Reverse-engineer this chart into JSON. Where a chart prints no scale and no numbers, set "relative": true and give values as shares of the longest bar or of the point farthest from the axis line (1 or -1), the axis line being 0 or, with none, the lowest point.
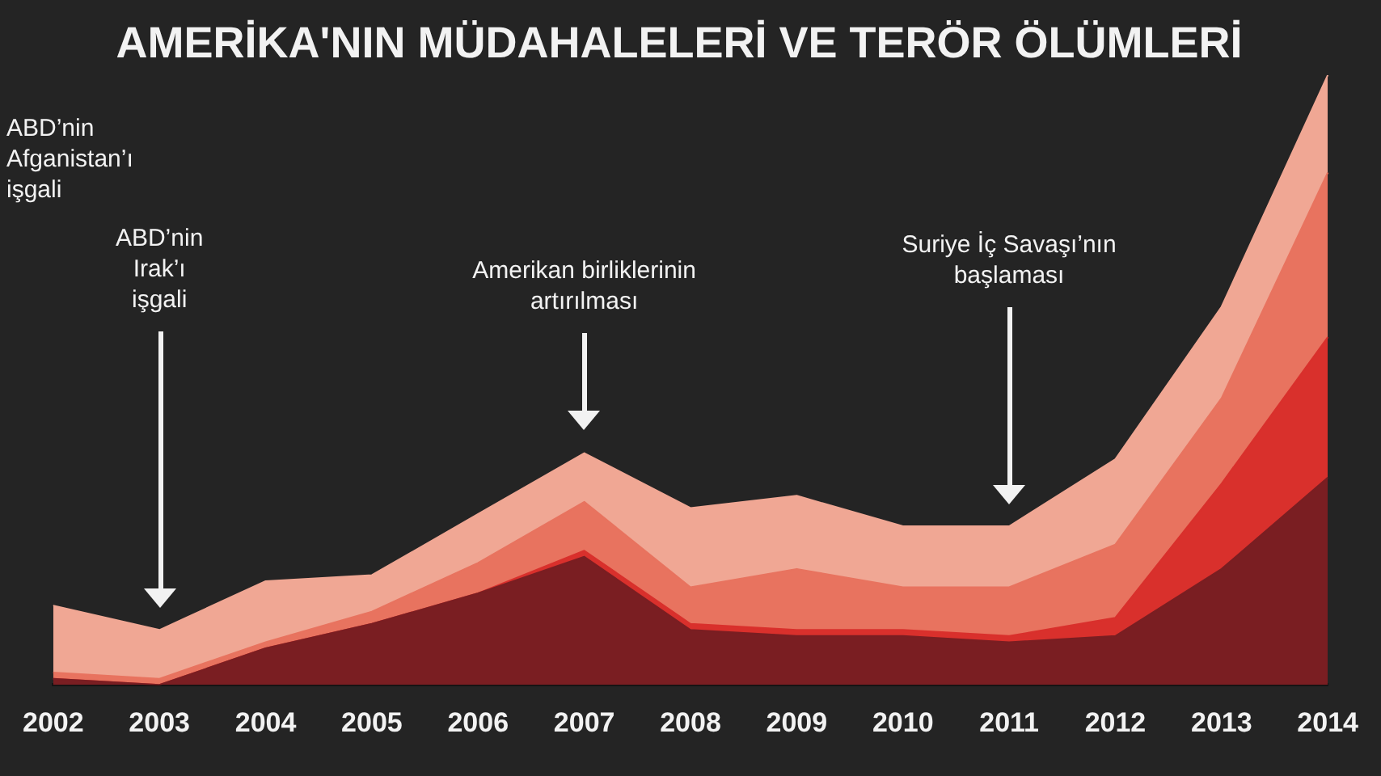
{
  "chart_data": {
    "type": "area",
    "stacked": true,
    "relative": true,
    "title": "AMERİKA'NIN MÜDAHALELERİ VE TERÖR ÖLÜMLERİ",
    "categories": [
      "2002",
      "2003",
      "2004",
      "2005",
      "2006",
      "2007",
      "2008",
      "2009",
      "2010",
      "2011",
      "2012",
      "2013",
      "2014"
    ],
    "series": [
      {
        "color": "#7a1e22",
        "values": [
          0.01,
          0,
          0.06,
          0.1,
          0.15,
          0.21,
          0.09,
          0.08,
          0.08,
          0.07,
          0.08,
          0.19,
          0.34
        ]
      },
      {
        "color": "#d9302c",
        "values": [
          0,
          0,
          0,
          0,
          0,
          0.01,
          0.01,
          0.01,
          0.01,
          0.01,
          0.03,
          0.14,
          0.23
        ]
      },
      {
        "color": "#e8735f",
        "values": [
          0.01,
          0.01,
          0.01,
          0.02,
          0.05,
          0.08,
          0.06,
          0.1,
          0.07,
          0.08,
          0.12,
          0.14,
          0.27
        ]
      },
      {
        "color": "#f0a794",
        "values": [
          0.11,
          0.08,
          0.1,
          0.06,
          0.08,
          0.08,
          0.13,
          0.12,
          0.1,
          0.1,
          0.14,
          0.15,
          0.16
        ]
      }
    ],
    "annotations": [
      "ABD’nin Afganistan’ı işgali",
      "ABD’nin Irak’ı işgali",
      "Amerikan birliklerinin artırılması",
      "Suriye İç Savaşı’nın başlaması"
    ],
    "legend": false
  }
}
